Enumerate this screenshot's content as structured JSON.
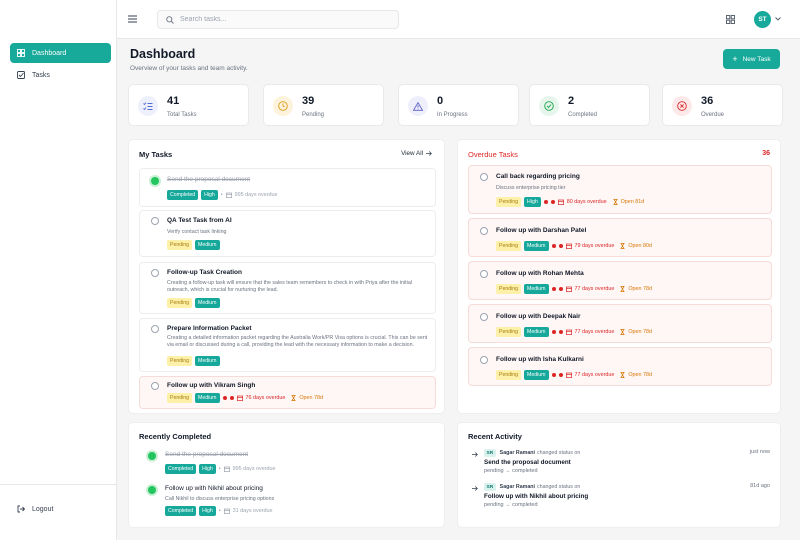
{
  "sidebar": {
    "items": [
      {
        "label": "Dashboard"
      },
      {
        "label": "Tasks"
      }
    ],
    "logout": "Logout"
  },
  "topbar": {
    "search_placeholder": "Search tasks...",
    "avatar": "ST"
  },
  "header": {
    "title": "Dashboard",
    "subtitle": "Overview of your tasks and team activity.",
    "new_task": "New Task"
  },
  "stats": [
    {
      "value": "41",
      "label": "Total Tasks",
      "icon": "list-icon",
      "color": "#4f6bdb"
    },
    {
      "value": "39",
      "label": "Pending",
      "icon": "clock-icon",
      "color": "#d99a13"
    },
    {
      "value": "0",
      "label": "In Progress",
      "icon": "warning-icon",
      "color": "#5b5fc7"
    },
    {
      "value": "2",
      "label": "Completed",
      "icon": "check-circle-icon",
      "color": "#16a34a"
    },
    {
      "value": "36",
      "label": "Overdue",
      "icon": "x-circle-icon",
      "color": "#dc2626"
    }
  ],
  "my_tasks": {
    "title": "My Tasks",
    "view_all": "View All",
    "items": [
      {
        "title": "Send the proposal document",
        "desc": "",
        "badges": [
          "Completed",
          "High"
        ],
        "meta": "995 days overdue",
        "done": true
      },
      {
        "title": "QA Test Task from AI",
        "desc": "Verify contact task linking",
        "badges": [
          "Pending",
          "Medium"
        ]
      },
      {
        "title": "Follow-up Task Creation",
        "desc": "Creating a follow-up task will ensure that the sales team remembers to check in with Priya after the initial outreach, which is crucial for nurturing the lead.",
        "badges": [
          "Pending",
          "Medium"
        ]
      },
      {
        "title": "Prepare Information Packet",
        "desc": "Creating a detailed information packet regarding the Australia Work/PR Visa options is crucial. This can be sent via email or discussed during a call, providing the lead with the necessary information to make a decision.",
        "badges": [
          "Pending",
          "Medium"
        ]
      },
      {
        "title": "Follow up with Vikram Singh",
        "desc": "",
        "badges": [
          "Pending",
          "Medium"
        ],
        "overdue": "76 days overdue",
        "open": "Open 78d"
      }
    ]
  },
  "overdue": {
    "title": "Overdue Tasks",
    "count": "36",
    "items": [
      {
        "title": "Call back regarding pricing",
        "desc": "Discuss enterprise pricing tier",
        "badges": [
          "Pending",
          "High"
        ],
        "overdue": "80 days overdue",
        "open": "Open 81d"
      },
      {
        "title": "Follow up with Darshan Patel",
        "badges": [
          "Pending",
          "Medium"
        ],
        "overdue": "79 days overdue",
        "open": "Open 80d"
      },
      {
        "title": "Follow up with Rohan Mehta",
        "badges": [
          "Pending",
          "Medium"
        ],
        "overdue": "77 days overdue",
        "open": "Open 78d"
      },
      {
        "title": "Follow up with Deepak Nair",
        "badges": [
          "Pending",
          "Medium"
        ],
        "overdue": "77 days overdue",
        "open": "Open 78d"
      },
      {
        "title": "Follow up with Isha Kulkarni",
        "badges": [
          "Pending",
          "Medium"
        ],
        "overdue": "77 days overdue",
        "open": "Open 78d"
      }
    ]
  },
  "recently_completed": {
    "title": "Recently Completed",
    "items": [
      {
        "title": "Send the proposal document",
        "desc": "",
        "badges": [
          "Completed",
          "High"
        ],
        "meta": "995 days overdue"
      },
      {
        "title": "Follow up with Nikhil about pricing",
        "desc": "Call Nikhil to discuss enterprise pricing options",
        "badges": [
          "Completed",
          "High"
        ],
        "meta": "31 days overdue"
      }
    ]
  },
  "activity": {
    "title": "Recent Activity",
    "items": [
      {
        "initials": "SR",
        "user": "Sagar Ramani",
        "action": "changed status on",
        "task": "Send the proposal document",
        "change": "pending → completed",
        "time": "just now"
      },
      {
        "initials": "SR",
        "user": "Sagar Ramani",
        "action": "changed status on",
        "task": "Follow up with Nikhil about pricing",
        "change": "pending → completed",
        "time": "81d ago"
      }
    ]
  }
}
